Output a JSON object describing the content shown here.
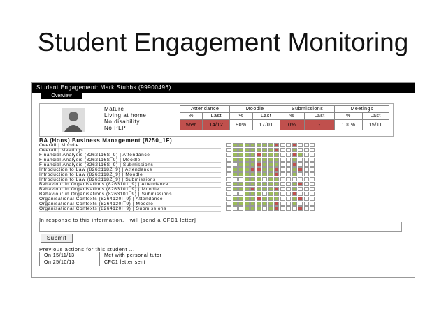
{
  "title": "Student Engagement Monitoring",
  "panel": {
    "header": "Student Engagement: Mark Stubbs (99900496)",
    "tab": "Overview",
    "attributes": [
      "Mature",
      "Living at home",
      "No disability",
      "No PLP"
    ],
    "metrics": {
      "groups": [
        "Attendance",
        "Moodle",
        "Submissions",
        "Meetings"
      ],
      "subheaders": [
        "%",
        "Last",
        "%",
        "Last",
        "%",
        "Last",
        "%",
        "Last"
      ],
      "values": [
        "56%",
        "14/12",
        "90%",
        "17/01",
        "0%",
        "-",
        "100%",
        "15/11"
      ]
    },
    "course": "BA (Hons) Business Management (8250_1F)",
    "rows": [
      "Overall | Moodle",
      "Overall | Meetings",
      "Financial Analysis (8262116S_9) | Attendance",
      "Financial Analysis (8262116S_9) | Moodle",
      "Financial Analysis (8262116S_9) | Submissions",
      "Introduction to Law (8262118Z_9) | Attendance",
      "Introduction to Law (8262118Z_9) | Moodle",
      "Introduction to Law (8262118Z_9) | Submissions",
      "Behaviour in Organisations (8263101_9) | Attendance",
      "Behaviour in Organisations (8263101_9) | Moodle",
      "Behaviour in Organisations (8263101_9) | Submissions",
      "Organisational Contexts (8264120I_9) | Attendance",
      "Organisational Contexts (8264120I_9) | Moodle",
      "Organisational Contexts (8264120I_9) | Submissions"
    ],
    "response": "In response to this information, I will [send a CFC1 letter]",
    "submit": "Submit",
    "previous_title": "Previous actions for this student ...",
    "previous": [
      [
        "On 15/11/13",
        "Met with personal tutor"
      ],
      [
        "On 25/10/13",
        "CFC1 letter sent"
      ]
    ]
  }
}
